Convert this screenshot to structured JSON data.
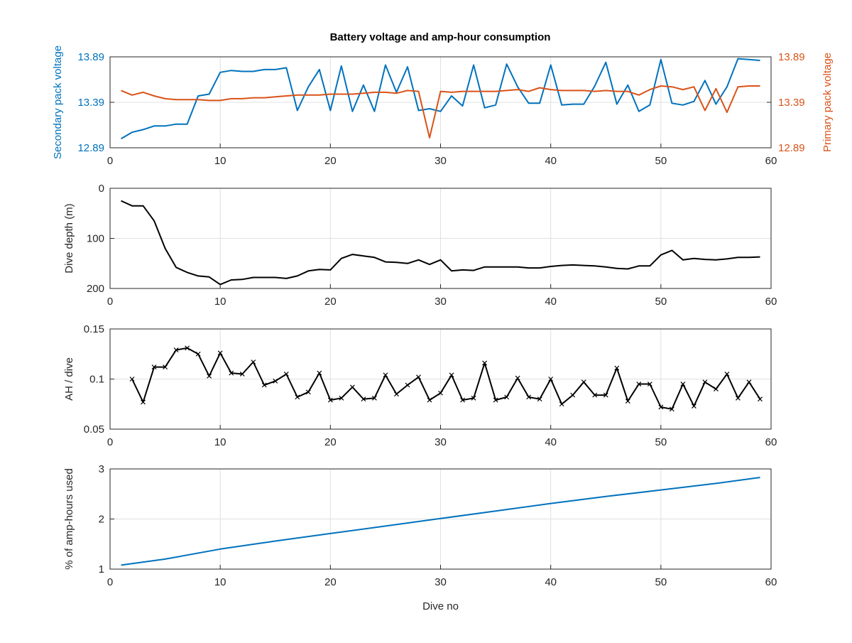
{
  "colors": {
    "secondary": "#0072BD",
    "primary": "#D95319",
    "black": "#000000",
    "grid": "#E0E0E0",
    "axis_text": "#262626"
  },
  "chart_data": [
    {
      "type": "line",
      "title": "Battery voltage and amp-hour consumption",
      "xlabel": "",
      "xlim": [
        0,
        60
      ],
      "xticks": [
        "0",
        "10",
        "20",
        "30",
        "40",
        "50",
        "60"
      ],
      "ylabel_left": "Secondary pack voltage",
      "ylabel_right": "Primary pack voltage",
      "ylim": [
        12.89,
        13.89
      ],
      "yticks_left": [
        "12.89",
        "13.39",
        "13.89"
      ],
      "yticks_right": [
        "12.89",
        "13.39",
        "13.89"
      ],
      "grid": true,
      "series": [
        {
          "axis": "left",
          "color": "#0072BD",
          "x": [
            1,
            2,
            3,
            4,
            5,
            6,
            7,
            8,
            9,
            10,
            11,
            12,
            13,
            14,
            15,
            16,
            17,
            18,
            19,
            20,
            21,
            22,
            23,
            24,
            25,
            26,
            27,
            28,
            29,
            30,
            31,
            32,
            33,
            34,
            35,
            36,
            37,
            38,
            39,
            40,
            41,
            42,
            43,
            44,
            45,
            46,
            47,
            48,
            49,
            50,
            51,
            52,
            53,
            54,
            55,
            56,
            57,
            58,
            59
          ],
          "values": [
            12.99,
            13.06,
            13.09,
            13.13,
            13.13,
            13.15,
            13.15,
            13.46,
            13.48,
            13.72,
            13.74,
            13.73,
            13.73,
            13.75,
            13.75,
            13.77,
            13.3,
            13.56,
            13.75,
            13.3,
            13.79,
            13.29,
            13.58,
            13.29,
            13.8,
            13.5,
            13.78,
            13.3,
            13.32,
            13.29,
            13.46,
            13.35,
            13.8,
            13.33,
            13.36,
            13.81,
            13.56,
            13.38,
            13.38,
            13.8,
            13.36,
            13.37,
            13.37,
            13.57,
            13.83,
            13.37,
            13.58,
            13.29,
            13.36,
            13.86,
            13.38,
            13.36,
            13.4,
            13.63,
            13.37,
            13.56,
            13.87,
            13.86,
            13.85
          ]
        },
        {
          "axis": "right",
          "color": "#D95319",
          "x": [
            1,
            2,
            3,
            4,
            5,
            6,
            7,
            8,
            9,
            10,
            11,
            12,
            13,
            14,
            15,
            16,
            17,
            18,
            19,
            20,
            21,
            22,
            23,
            24,
            25,
            26,
            27,
            28,
            29,
            30,
            31,
            32,
            33,
            34,
            35,
            36,
            37,
            38,
            39,
            40,
            41,
            42,
            43,
            44,
            45,
            46,
            47,
            48,
            49,
            50,
            51,
            52,
            53,
            54,
            55,
            56,
            57,
            58,
            59
          ],
          "values": [
            13.52,
            13.47,
            13.5,
            13.46,
            13.43,
            13.42,
            13.42,
            13.42,
            13.41,
            13.41,
            13.43,
            13.43,
            13.44,
            13.44,
            13.45,
            13.46,
            13.47,
            13.47,
            13.47,
            13.48,
            13.48,
            13.48,
            13.49,
            13.5,
            13.5,
            13.49,
            13.52,
            13.51,
            13.0,
            13.51,
            13.5,
            13.51,
            13.51,
            13.51,
            13.51,
            13.52,
            13.53,
            13.51,
            13.55,
            13.53,
            13.52,
            13.52,
            13.52,
            13.51,
            13.52,
            13.51,
            13.51,
            13.47,
            13.53,
            13.57,
            13.56,
            13.53,
            13.56,
            13.3,
            13.54,
            13.28,
            13.56,
            13.57,
            13.57
          ]
        }
      ]
    },
    {
      "type": "line",
      "xlabel": "",
      "ylabel": "Dive depth (m)",
      "xlim": [
        0,
        60
      ],
      "ylim": [
        0,
        200
      ],
      "y_reversed": true,
      "xticks": [
        "0",
        "10",
        "20",
        "30",
        "40",
        "50",
        "60"
      ],
      "yticks": [
        "0",
        "100",
        "200"
      ],
      "grid": true,
      "series": [
        {
          "color": "#000000",
          "x": [
            1,
            2,
            3,
            4,
            5,
            6,
            7,
            8,
            9,
            10,
            11,
            12,
            13,
            14,
            15,
            16,
            17,
            18,
            19,
            20,
            21,
            22,
            23,
            24,
            25,
            26,
            27,
            28,
            29,
            30,
            31,
            32,
            33,
            34,
            35,
            36,
            37,
            38,
            39,
            40,
            41,
            42,
            43,
            44,
            45,
            46,
            47,
            48,
            49,
            50,
            51,
            52,
            53,
            54,
            55,
            56,
            57,
            58,
            59
          ],
          "values": [
            25,
            35,
            35,
            65,
            120,
            158,
            168,
            175,
            177,
            192,
            183,
            182,
            178,
            178,
            178,
            180,
            175,
            165,
            162,
            163,
            140,
            132,
            135,
            138,
            147,
            148,
            150,
            143,
            152,
            143,
            165,
            163,
            164,
            157,
            157,
            157,
            157,
            159,
            159,
            156,
            154,
            153,
            154,
            155,
            157,
            160,
            161,
            155,
            155,
            133,
            124,
            143,
            140,
            142,
            143,
            141,
            138,
            138,
            137
          ]
        }
      ]
    },
    {
      "type": "line",
      "xlabel": "",
      "ylabel": "AH / dive",
      "xlim": [
        0,
        60
      ],
      "ylim": [
        0.05,
        0.15
      ],
      "xticks": [
        "0",
        "10",
        "20",
        "30",
        "40",
        "50",
        "60"
      ],
      "yticks": [
        "0.05",
        "0.1",
        "0.15"
      ],
      "grid": true,
      "marker": "x",
      "series": [
        {
          "color": "#000000",
          "x": [
            2,
            3,
            4,
            5,
            6,
            7,
            8,
            9,
            10,
            11,
            12,
            13,
            14,
            15,
            16,
            17,
            18,
            19,
            20,
            21,
            22,
            23,
            24,
            25,
            26,
            27,
            28,
            29,
            30,
            31,
            32,
            33,
            34,
            35,
            36,
            37,
            38,
            39,
            40,
            41,
            42,
            43,
            44,
            45,
            46,
            47,
            48,
            49,
            50,
            51,
            52,
            53,
            54,
            55,
            56,
            57,
            58,
            59
          ],
          "values": [
            0.1,
            0.077,
            0.112,
            0.112,
            0.129,
            0.131,
            0.125,
            0.103,
            0.126,
            0.106,
            0.105,
            0.117,
            0.094,
            0.098,
            0.105,
            0.082,
            0.087,
            0.106,
            0.079,
            0.081,
            0.092,
            0.08,
            0.081,
            0.104,
            0.085,
            0.094,
            0.102,
            0.079,
            0.086,
            0.104,
            0.079,
            0.081,
            0.116,
            0.079,
            0.082,
            0.101,
            0.082,
            0.08,
            0.1,
            0.075,
            0.084,
            0.097,
            0.084,
            0.084,
            0.111,
            0.078,
            0.095,
            0.095,
            0.072,
            0.07,
            0.095,
            0.073,
            0.097,
            0.09,
            0.105,
            0.081,
            0.097,
            0.08
          ]
        }
      ]
    },
    {
      "type": "line",
      "xlabel": "Dive no",
      "ylabel": "% of amp-hours used",
      "xlim": [
        0,
        60
      ],
      "ylim": [
        1,
        3
      ],
      "xticks": [
        "0",
        "10",
        "20",
        "30",
        "40",
        "50",
        "60"
      ],
      "yticks": [
        "1",
        "2",
        "3"
      ],
      "grid": true,
      "series": [
        {
          "color": "#0072BD",
          "x": [
            1,
            5,
            10,
            15,
            20,
            25,
            30,
            35,
            40,
            45,
            50,
            55,
            59
          ],
          "values": [
            1.08,
            1.2,
            1.4,
            1.56,
            1.71,
            1.86,
            2.01,
            2.16,
            2.31,
            2.45,
            2.58,
            2.71,
            2.83
          ]
        }
      ]
    }
  ]
}
